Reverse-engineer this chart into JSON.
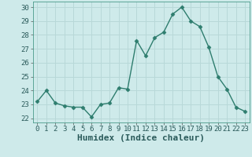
{
  "x": [
    0,
    1,
    2,
    3,
    4,
    5,
    6,
    7,
    8,
    9,
    10,
    11,
    12,
    13,
    14,
    15,
    16,
    17,
    18,
    19,
    20,
    21,
    22,
    23
  ],
  "y": [
    23.2,
    24.0,
    23.1,
    22.9,
    22.8,
    22.8,
    22.1,
    23.0,
    23.1,
    24.2,
    24.1,
    27.6,
    26.5,
    27.8,
    28.2,
    29.5,
    30.0,
    29.0,
    28.6,
    27.1,
    25.0,
    24.1,
    22.8,
    22.5
  ],
  "line_color": "#2e7d6e",
  "marker": "D",
  "marker_size": 2.5,
  "bg_color": "#ceeaea",
  "grid_color": "#b8d8d8",
  "xlabel": "Humidex (Indice chaleur)",
  "xlabel_fontsize": 8,
  "ylim": [
    21.7,
    30.4
  ],
  "xlim": [
    -0.5,
    23.5
  ],
  "yticks": [
    22,
    23,
    24,
    25,
    26,
    27,
    28,
    29,
    30
  ],
  "xticks": [
    0,
    1,
    2,
    3,
    4,
    5,
    6,
    7,
    8,
    9,
    10,
    11,
    12,
    13,
    14,
    15,
    16,
    17,
    18,
    19,
    20,
    21,
    22,
    23
  ],
  "tick_fontsize": 6.5,
  "linewidth": 1.0
}
